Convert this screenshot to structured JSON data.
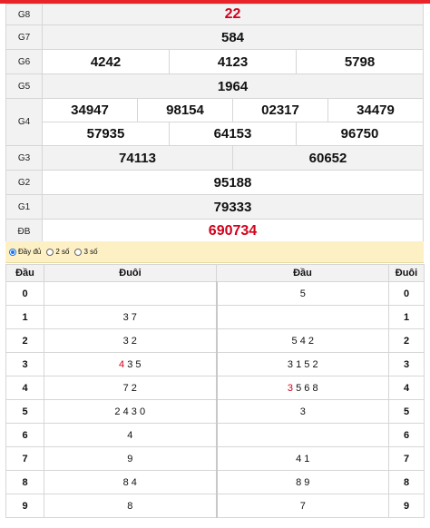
{
  "prizes": {
    "g8": {
      "label": "G8",
      "nums": [
        "22"
      ]
    },
    "g7": {
      "label": "G7",
      "nums": [
        "584"
      ]
    },
    "g6": {
      "label": "G6",
      "nums": [
        "4242",
        "4123",
        "5798"
      ]
    },
    "g5": {
      "label": "G5",
      "nums": [
        "1964"
      ]
    },
    "g4": {
      "label": "G4",
      "row1": [
        "34947",
        "98154",
        "02317",
        "34479"
      ],
      "row2": [
        "57935",
        "64153",
        "96750"
      ]
    },
    "g3": {
      "label": "G3",
      "nums": [
        "74113",
        "60652"
      ]
    },
    "g2": {
      "label": "G2",
      "nums": [
        "95188"
      ]
    },
    "g1": {
      "label": "G1",
      "nums": [
        "79333"
      ]
    },
    "db": {
      "label": "ĐB",
      "nums": [
        "690734"
      ]
    }
  },
  "options": [
    "Đầy đủ",
    "2 số",
    "3 số"
  ],
  "loto": {
    "headers": [
      "Đầu",
      "Đuôi",
      "Đầu",
      "Đuôi"
    ],
    "rows": [
      {
        "k": "0",
        "a": "",
        "b": "5"
      },
      {
        "k": "1",
        "a": "3 7",
        "b": ""
      },
      {
        "k": "2",
        "a": "3 2",
        "b": "5 4 2"
      },
      {
        "k": "3",
        "a_red": "4",
        "a": "3 5",
        "b": "3 1 5 2"
      },
      {
        "k": "4",
        "a": "7 2",
        "b_red": "3",
        "b": "5 6 8"
      },
      {
        "k": "5",
        "a": "2 4 3 0",
        "b": "3"
      },
      {
        "k": "6",
        "a": "4",
        "b": ""
      },
      {
        "k": "7",
        "a": "9",
        "b": "4 1"
      },
      {
        "k": "8",
        "a": "8 4",
        "b": "8 9"
      },
      {
        "k": "9",
        "a": "8",
        "b": "7"
      }
    ]
  },
  "colors": {
    "accent": "#d0021b",
    "option_bar": "#fdf0c4",
    "topbar": "#e8232a"
  }
}
